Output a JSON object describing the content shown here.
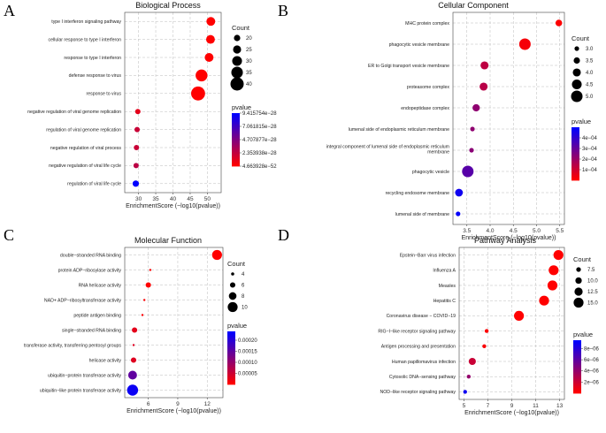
{
  "chart_data": [
    {
      "letter": "A",
      "type": "scatter",
      "title": "Biological Process",
      "xlabel": "EnrichmentScore (−log10(pvalue))",
      "xlim": [
        26,
        54
      ],
      "xticks": [
        30,
        35,
        40,
        45,
        50
      ],
      "categories": [
        "type I interferon signaling pathway",
        "cellular response to type I interferon",
        "response to type I interferon",
        "defense response to virus",
        "response to virus",
        "negative regulation of viral genome replication",
        "regulation of viral genome replication",
        "negative regulation of viral process",
        "negative regulation of viral life cycle",
        "regulation of viral life cycle"
      ],
      "x": [
        51.0,
        50.9,
        50.5,
        48.3,
        47.3,
        29.8,
        29.6,
        29.4,
        29.3,
        29.2
      ],
      "count": [
        27,
        27,
        27,
        36,
        42,
        10,
        17,
        17,
        15,
        20
      ],
      "pvalue": [
        4.7e-52,
        4.7e-52,
        5e-52,
        5e-50,
        5e-49,
        1e-28,
        2e-28,
        2e-28,
        2.5e-28,
        9.4e-28
      ],
      "size_legend_title": "Count",
      "size_legend": [
        20,
        25,
        30,
        35,
        40
      ],
      "color_legend_title": "pvalue",
      "color_range": [
        4.663928e-52,
        9.415754e-28
      ],
      "color_legend_labels": [
        "9.415754e−28",
        "7.061815e−28",
        "4.707877e−28",
        "2.353938e−28",
        "4.663928e−52"
      ]
    },
    {
      "letter": "B",
      "type": "scatter",
      "title": "Cellular Component",
      "xlabel": "EnrichmentScore (−log10(pvalue))",
      "xlim": [
        3.2,
        5.6
      ],
      "xticks": [
        3.5,
        4.0,
        4.5,
        5.0,
        5.5
      ],
      "xtick_labels": [
        "3.5",
        "4.0",
        "4.5",
        "5.0",
        "5.5"
      ],
      "categories": [
        "MHC protein complex",
        "phagocytic vesicle membrane",
        "ER to Golgi transport vesicle membrane",
        "proteasome complex",
        "endopeptidase complex",
        "lumenal side of endoplasmic reticulum membrane",
        "integral component of lumenal side of endoplasmic reticulum membrane",
        "phagocytic vesicle",
        "recycling endosome membrane",
        "lumenal side of membrane"
      ],
      "x": [
        5.48,
        4.75,
        3.88,
        3.86,
        3.7,
        3.62,
        3.6,
        3.52,
        3.33,
        3.31
      ],
      "count": [
        3.6,
        5.0,
        4.0,
        4.0,
        3.8,
        3.0,
        3.0,
        5.0,
        3.9,
        3.0
      ],
      "pvalue": [
        3e-06,
        1.8e-05,
        0.00013,
        0.00014,
        0.00022,
        0.00022,
        0.00023,
        0.00033,
        0.00047,
        0.00049
      ],
      "size_legend_title": "Count",
      "size_legend": [
        3.0,
        3.5,
        4.0,
        4.5,
        5.0
      ],
      "size_legend_labels": [
        "3.0",
        "3.5",
        "4.0",
        "4.5",
        "5.0"
      ],
      "color_legend_title": "pvalue",
      "color_range": [
        0,
        0.0005
      ],
      "color_legend_ticks": [
        0.0004,
        0.0003,
        0.0002,
        0.0001
      ],
      "color_legend_labels": [
        "4e−04",
        "3e−04",
        "2e−04",
        "1e−04"
      ]
    },
    {
      "letter": "C",
      "type": "scatter",
      "title": "Molecular Function",
      "xlabel": "EnrichmentScore (−log10(pvalue))",
      "xlim": [
        3.6,
        13.6
      ],
      "xticks": [
        6,
        9,
        12
      ],
      "categories": [
        "double−stranded RNA binding",
        "protein ADP−ribosylase activity",
        "RNA helicase activity",
        "NAD+ ADP−ribosyltransferase activity",
        "peptide antigen binding",
        "single−stranded RNA binding",
        "transferase activity, transferring pentosyl groups",
        "helicase activity",
        "ubiquitin−protein transferase activity",
        "ubiquitin−like protein transferase activity"
      ],
      "x": [
        13.0,
        6.2,
        6.0,
        5.6,
        5.4,
        4.6,
        4.5,
        4.5,
        4.4,
        4.4
      ],
      "count": [
        10,
        3,
        6,
        3,
        3,
        6,
        3,
        6,
        9,
        11
      ],
      "pvalue": [
        1e-13,
        6e-07,
        1e-06,
        2.5e-06,
        4e-06,
        2.5e-05,
        3e-05,
        3e-05,
        0.00015,
        0.00023
      ],
      "size_legend_title": "Count",
      "size_legend": [
        4,
        6,
        8,
        10
      ],
      "color_legend_title": "pvalue",
      "color_range": [
        0,
        0.00024
      ],
      "color_legend_ticks": [
        0.0002,
        0.00015,
        0.0001,
        5e-05
      ],
      "color_legend_labels": [
        "0.00020",
        "0.00015",
        "0.00010",
        "0.00005"
      ]
    },
    {
      "letter": "D",
      "type": "scatter",
      "title": "Pathway Analysis",
      "xlabel": "EnrichmentScore (−log10(pvalue))",
      "xlim": [
        4.6,
        13.4
      ],
      "xticks": [
        5,
        7,
        9,
        11,
        13
      ],
      "categories": [
        "Epstein−Barr virus infection",
        "Influenza A",
        "Measles",
        "Hepatitis C",
        "Coronavirus disease − COVID−19",
        "RIG−I−like receptor signaling pathway",
        "Antigen processing and presentation",
        "Human papillomavirus infection",
        "Cytosolic DNA−sensing pathway",
        "NOD−like receptor signaling pathway"
      ],
      "x": [
        12.9,
        12.5,
        12.4,
        11.7,
        9.6,
        6.9,
        6.7,
        5.7,
        5.4,
        5.1
      ],
      "count": [
        15,
        15,
        15,
        15,
        15,
        6,
        6,
        11,
        5,
        5
      ],
      "pvalue": [
        1e-13,
        3e-13,
        4e-13,
        2e-12,
        2.5e-10,
        1.3e-07,
        2e-07,
        2e-06,
        4e-06,
        9e-06
      ],
      "size_legend_title": "Count",
      "size_legend": [
        7.5,
        10.0,
        12.5,
        15.0
      ],
      "size_legend_labels": [
        "7.5",
        "10.0",
        "12.5",
        "15.0"
      ],
      "color_legend_title": "pvalue",
      "color_range": [
        0,
        9.5e-06
      ],
      "color_legend_ticks": [
        8e-06,
        6e-06,
        4e-06,
        2e-06
      ],
      "color_legend_labels": [
        "8e−06",
        "6e−06",
        "4e−06",
        "2e−06"
      ]
    }
  ],
  "colors": {
    "low": "#ff0000",
    "high": "#0000ff",
    "grid": "#bbbbbb"
  }
}
